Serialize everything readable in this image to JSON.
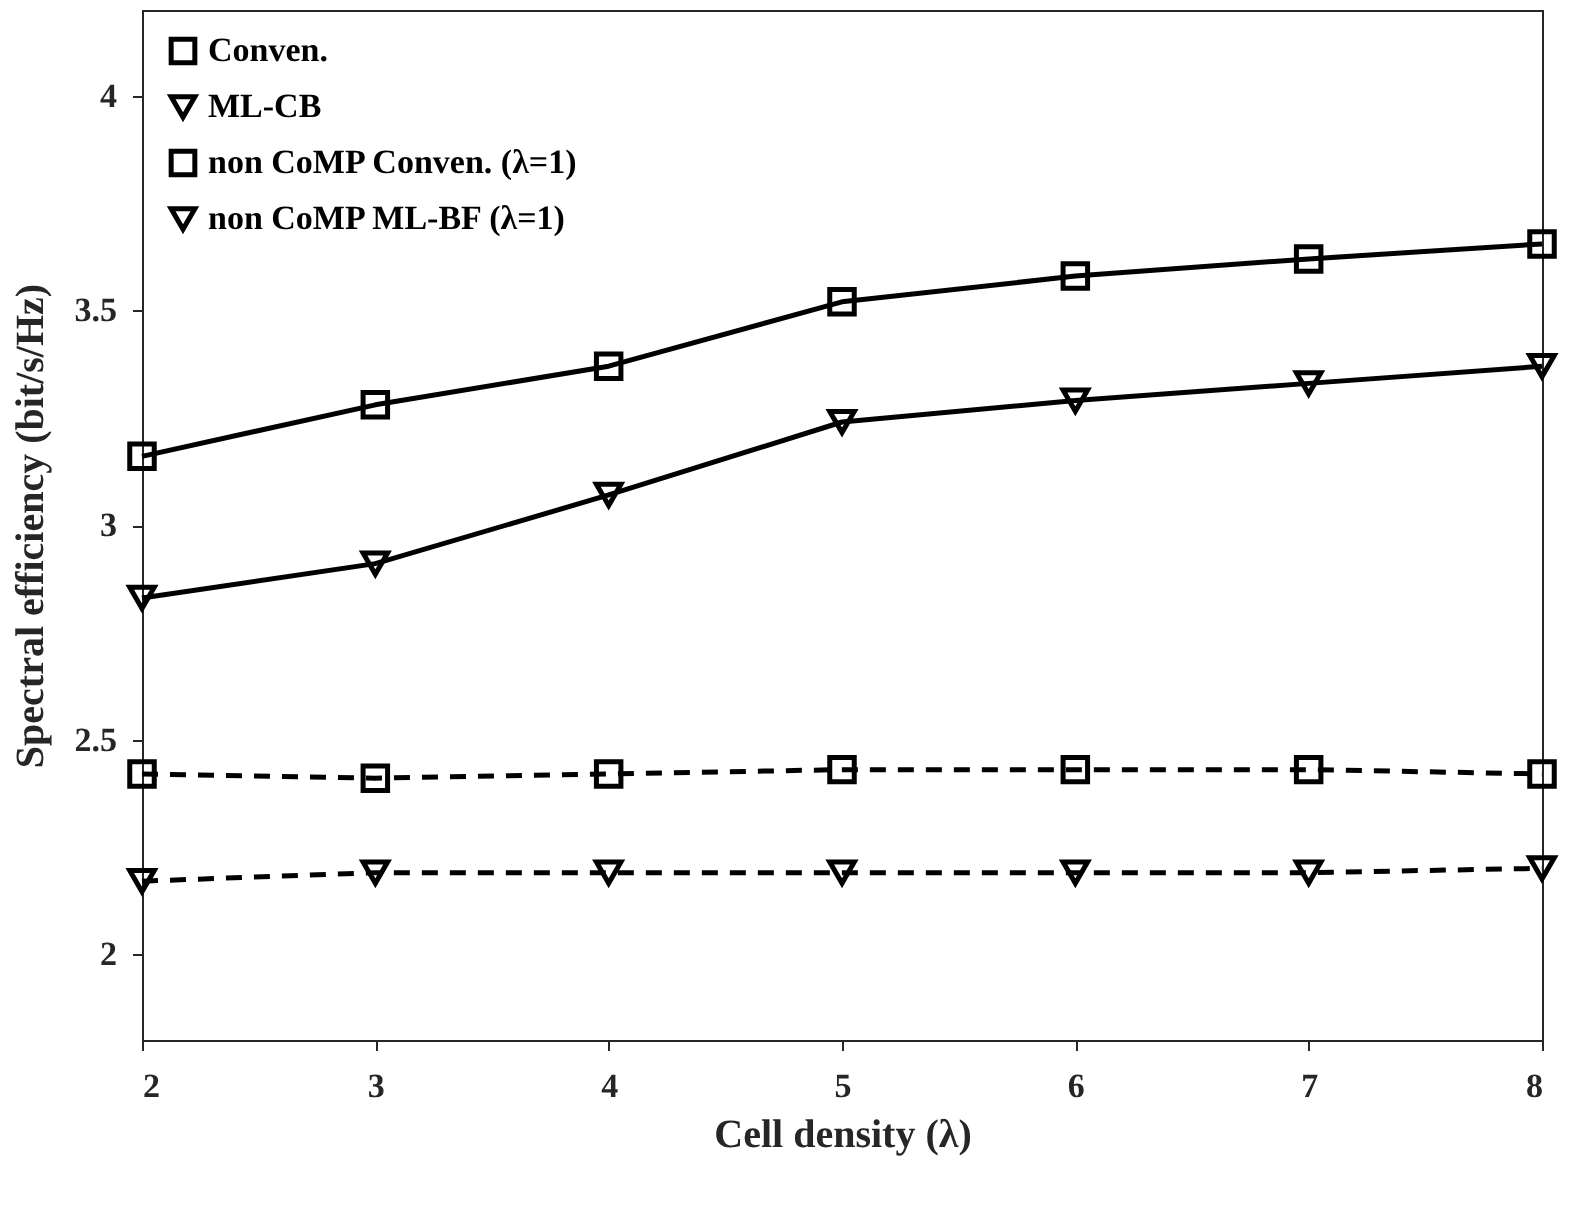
{
  "chart_data": {
    "type": "line",
    "xlabel": "Cell density (λ)",
    "ylabel": "Spectral efficiency (bit/s/Hz)",
    "x": [
      2,
      3,
      4,
      5,
      6,
      7,
      8
    ],
    "xlim": [
      2,
      8
    ],
    "xticks": [
      2,
      3,
      4,
      5,
      6,
      7,
      8
    ],
    "ylim": [
      1.8,
      4.2
    ],
    "yticks": [
      2,
      2.5,
      3,
      3.5,
      4
    ],
    "grid": false,
    "legend": "top left",
    "series": [
      {
        "name": "Conven.",
        "color": "#000000",
        "marker": "square",
        "line_style": "solid",
        "values": [
          3.16,
          3.28,
          3.37,
          3.52,
          3.58,
          3.62,
          3.655
        ]
      },
      {
        "name": "ML-CB",
        "color": "#000000",
        "marker": "triangle-down",
        "line_style": "solid",
        "values": [
          2.83,
          2.91,
          3.07,
          3.24,
          3.29,
          3.33,
          3.37
        ]
      },
      {
        "name": "non CoMP Conven. (λ=1)",
        "color": "#000000",
        "marker": "square",
        "line_style": "dashed",
        "values": [
          2.42,
          2.41,
          2.42,
          2.43,
          2.43,
          2.43,
          2.42
        ]
      },
      {
        "name": "non CoMP ML-BF (λ=1)",
        "color": "#000000",
        "marker": "triangle-down",
        "line_style": "dashed",
        "values": [
          2.17,
          2.19,
          2.19,
          2.19,
          2.19,
          2.19,
          2.2
        ]
      }
    ]
  }
}
